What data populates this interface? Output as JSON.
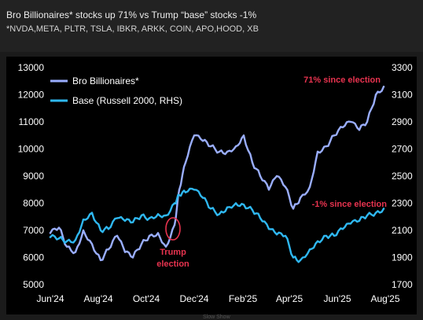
{
  "header": {
    "title": "Bro Billionaires* stocks up 71% vs Trump “base” stocks -1%",
    "subtitle": "*NVDA,META, PLTR, TSLA, IBKR, ARKK, COIN, APO,HOOD, XB"
  },
  "footer": {
    "credit": "Slow Show"
  },
  "colors": {
    "background": "#000000",
    "bro": "#9aaeff",
    "base": "#2fb8f2",
    "annotation": "#e8334f",
    "axis_text": "#ffffff"
  },
  "chart_data": {
    "type": "line",
    "title": "",
    "xlabel": "",
    "ylabel": "",
    "x_ticks": [
      "Jun'24",
      "Aug'24",
      "Oct'24",
      "Dec'24",
      "Feb'25",
      "Apr'25",
      "Jun'25",
      "Aug'25"
    ],
    "y_left_ticks": [
      "13000",
      "12000",
      "11000",
      "10000",
      "9000",
      "8000",
      "7000",
      "6000",
      "5000"
    ],
    "y_right_ticks": [
      "3300",
      "3100",
      "2900",
      "2700",
      "2500",
      "2300",
      "2100",
      "1900",
      "1700"
    ],
    "ylim_left": [
      5000,
      13000
    ],
    "ylim_right": [
      1700,
      3300
    ],
    "legend_position": "top-left",
    "grid": false,
    "series": [
      {
        "name": "Bro Billionaires*",
        "axis": "left",
        "x": [
          "2024-06-01",
          "2024-06-12",
          "2024-06-22",
          "2024-07-03",
          "2024-07-13",
          "2024-07-24",
          "2024-08-04",
          "2024-08-14",
          "2024-08-25",
          "2024-09-04",
          "2024-09-14",
          "2024-09-25",
          "2024-10-05",
          "2024-10-16",
          "2024-10-26",
          "2024-11-06",
          "2024-11-12",
          "2024-11-20",
          "2024-12-01",
          "2024-12-12",
          "2024-12-22",
          "2025-01-02",
          "2025-01-12",
          "2025-01-23",
          "2025-02-02",
          "2025-02-13",
          "2025-02-23",
          "2025-03-06",
          "2025-03-16",
          "2025-03-27",
          "2025-04-06",
          "2025-04-15",
          "2025-04-27",
          "2025-05-07",
          "2025-05-18",
          "2025-05-28",
          "2025-06-08",
          "2025-06-18",
          "2025-06-29",
          "2025-07-09",
          "2025-07-20",
          "2025-07-30"
        ],
        "values": [
          6900,
          7100,
          6400,
          6200,
          7000,
          6500,
          5900,
          6300,
          6800,
          6200,
          6000,
          6500,
          6800,
          6900,
          6400,
          7200,
          8500,
          9500,
          10500,
          10300,
          10100,
          9900,
          9900,
          10100,
          10500,
          9500,
          9000,
          8500,
          9000,
          8600,
          7800,
          8200,
          8600,
          9900,
          10100,
          10500,
          10800,
          11000,
          10700,
          11000,
          12000,
          12300
        ]
      },
      {
        "name": "Base (Russell 2000, RHS)",
        "axis": "right",
        "x": [
          "2024-06-01",
          "2024-06-12",
          "2024-06-22",
          "2024-07-03",
          "2024-07-13",
          "2024-07-24",
          "2024-08-04",
          "2024-08-14",
          "2024-08-25",
          "2024-09-04",
          "2024-09-14",
          "2024-09-25",
          "2024-10-05",
          "2024-10-16",
          "2024-10-26",
          "2024-11-06",
          "2024-11-12",
          "2024-11-20",
          "2024-12-01",
          "2024-12-12",
          "2024-12-22",
          "2025-01-02",
          "2025-01-12",
          "2025-01-23",
          "2025-02-02",
          "2025-02-13",
          "2025-02-23",
          "2025-03-06",
          "2025-03-16",
          "2025-03-27",
          "2025-04-06",
          "2025-04-15",
          "2025-04-27",
          "2025-05-07",
          "2025-05-18",
          "2025-05-28",
          "2025-06-08",
          "2025-06-18",
          "2025-06-29",
          "2025-07-09",
          "2025-07-20",
          "2025-07-30"
        ],
        "values": [
          2050,
          2040,
          2020,
          2030,
          2180,
          2230,
          2100,
          2110,
          2190,
          2170,
          2160,
          2210,
          2190,
          2220,
          2210,
          2300,
          2360,
          2380,
          2400,
          2340,
          2260,
          2220,
          2270,
          2300,
          2290,
          2250,
          2190,
          2110,
          2070,
          2060,
          1900,
          1880,
          1960,
          2020,
          2060,
          2060,
          2110,
          2150,
          2170,
          2210,
          2230,
          2260
        ]
      }
    ],
    "annotations": [
      {
        "text": "71% since election",
        "color": "#e8334f"
      },
      {
        "text": "-1% since election",
        "color": "#e8334f"
      },
      {
        "text": "Trump",
        "color": "#e8334f"
      },
      {
        "text": "election",
        "color": "#e8334f"
      }
    ]
  }
}
